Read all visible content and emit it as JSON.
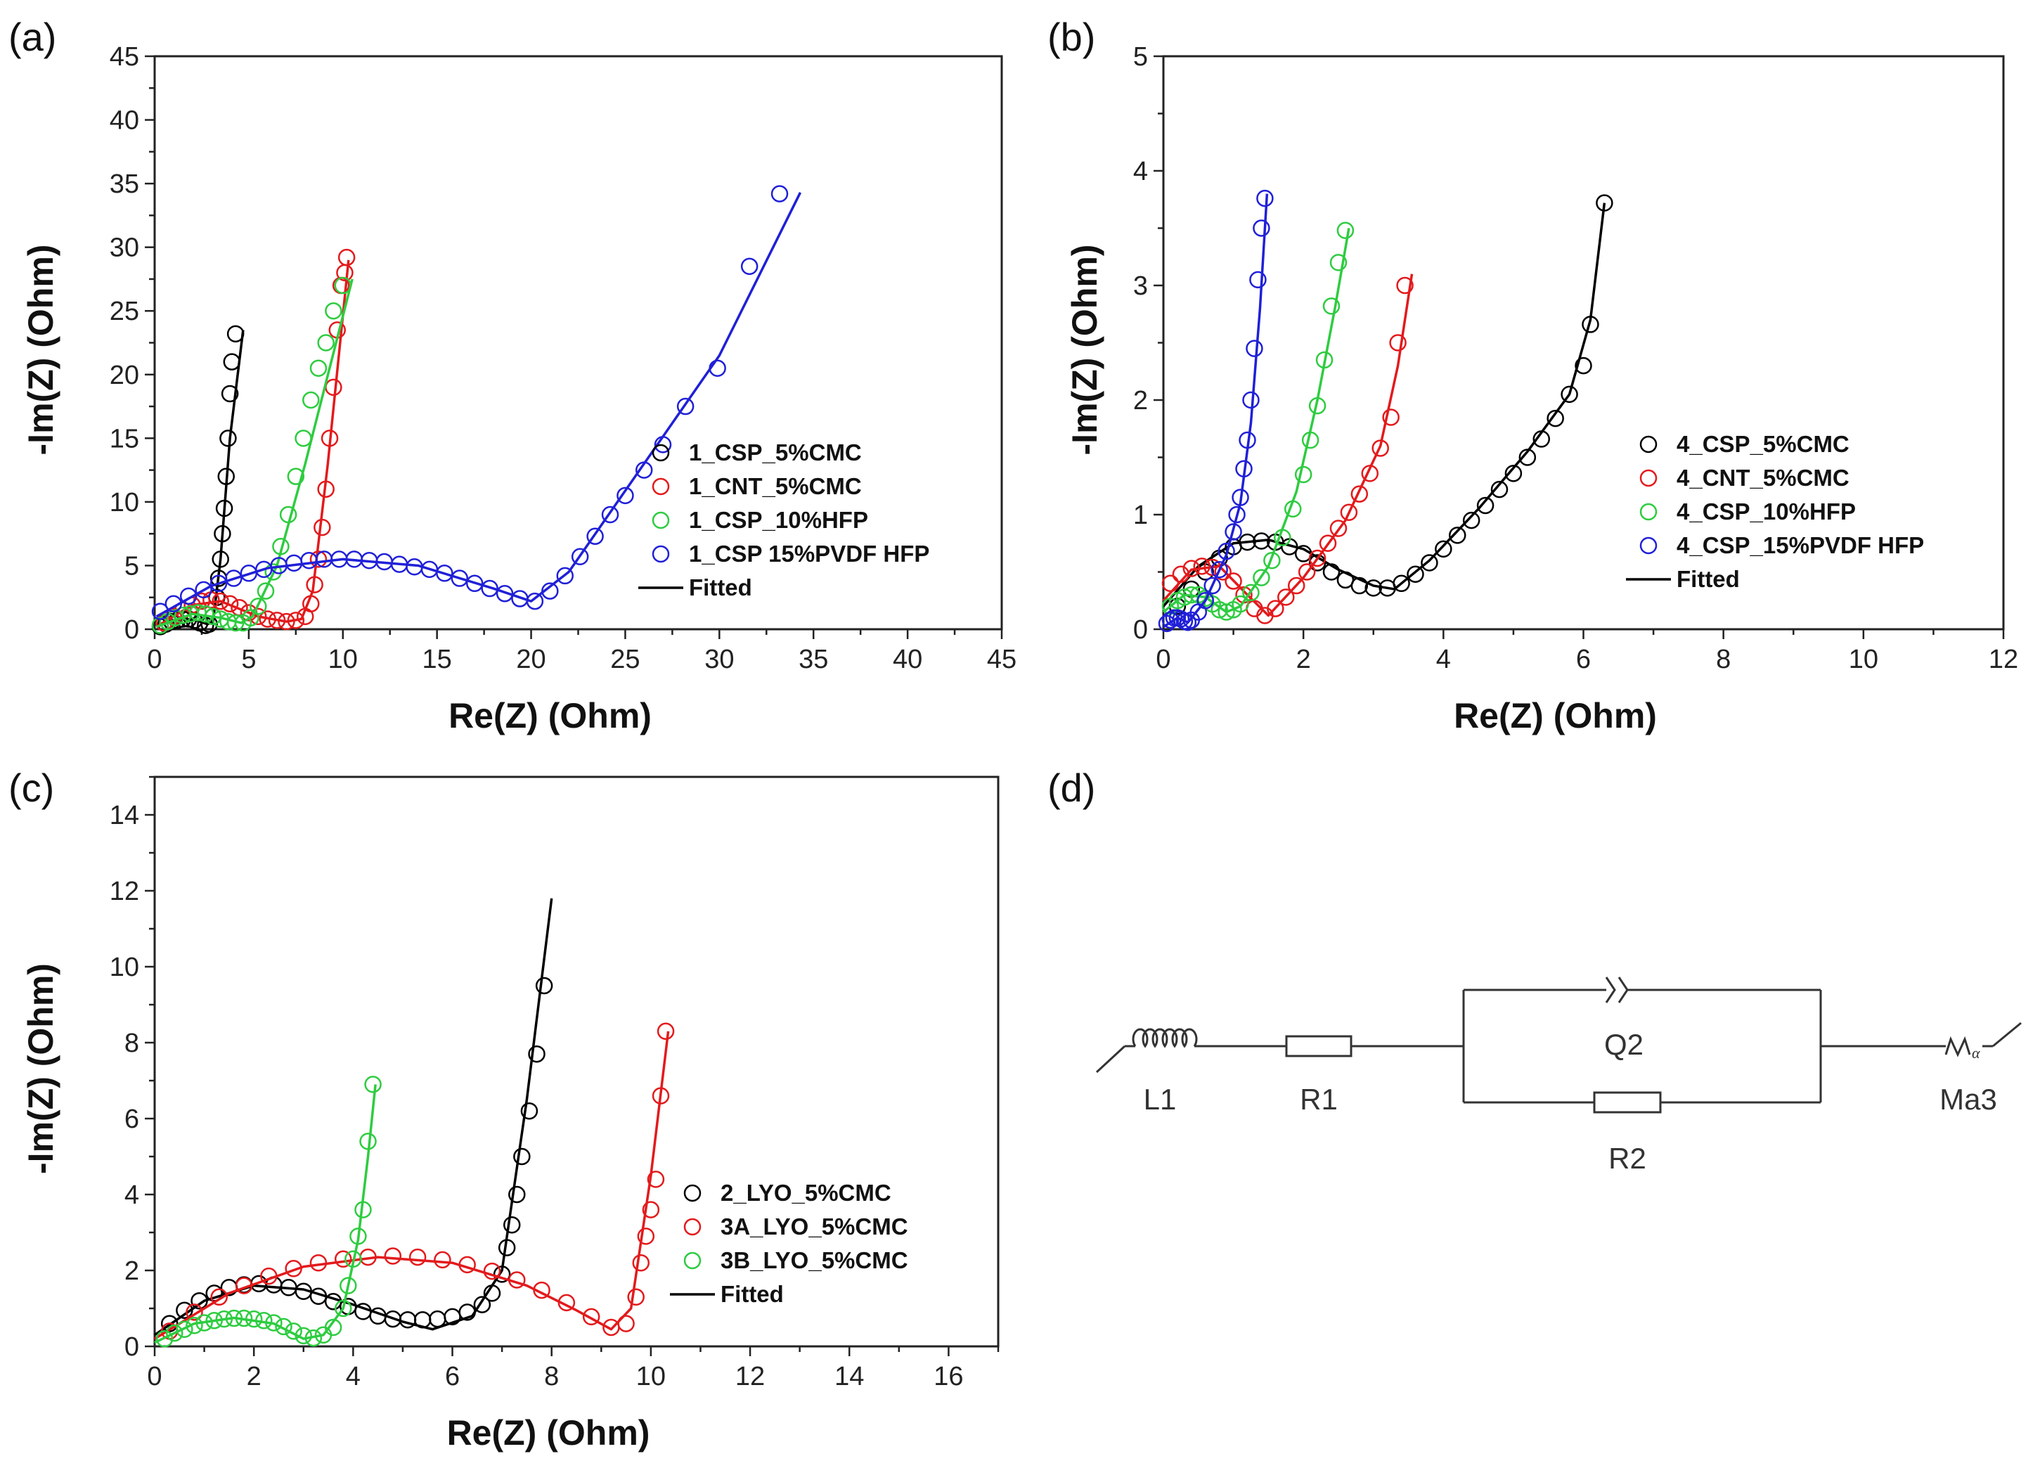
{
  "figure": {
    "panels": [
      "(a)",
      "(b)",
      "(c)",
      "(d)"
    ]
  },
  "chart_data": [
    {
      "type": "scatter",
      "panel": "(a)",
      "xlabel": "Re(Z) (Ohm)",
      "ylabel": "-Im(Z) (Ohm)",
      "xlim": [
        0,
        45
      ],
      "ylim": [
        0,
        45
      ],
      "xticks": [
        0,
        5,
        10,
        15,
        20,
        25,
        30,
        35,
        40,
        45
      ],
      "yticks": [
        0,
        5,
        10,
        15,
        20,
        25,
        30,
        35,
        40,
        45
      ],
      "legend_position": "center-right",
      "fitted_label": "Fitted",
      "series": [
        {
          "name": "1_CSP_5%CMC",
          "color": "#000000",
          "x": [
            0.3,
            0.6,
            0.9,
            1.2,
            1.5,
            1.8,
            2.1,
            2.4,
            2.7,
            2.9,
            3.1,
            3.3,
            3.4,
            3.5,
            3.6,
            3.7,
            3.8,
            3.9,
            4.0,
            4.1,
            4.3
          ],
          "y": [
            0.2,
            0.4,
            0.6,
            0.7,
            0.8,
            0.8,
            0.7,
            0.5,
            0.3,
            0.4,
            1.0,
            2.5,
            4.0,
            5.5,
            7.5,
            9.5,
            12.0,
            15.0,
            18.5,
            21.0,
            23.2
          ],
          "fit_x": [
            0.1,
            1.0,
            2.0,
            2.8,
            3.1,
            3.5,
            4.0,
            4.7
          ],
          "fit_y": [
            0.2,
            0.7,
            0.8,
            0.4,
            0.6,
            5.5,
            15.0,
            23.5
          ]
        },
        {
          "name": "1_CNT_5%CMC",
          "color": "#e31a1c",
          "x": [
            0.5,
            1.0,
            1.5,
            2.0,
            2.5,
            3.0,
            3.5,
            4.0,
            4.5,
            5.0,
            5.5,
            6.0,
            6.5,
            7.0,
            7.5,
            8.0,
            8.3,
            8.5,
            8.7,
            8.9,
            9.1,
            9.3,
            9.5,
            9.7,
            9.9,
            10.1,
            10.2
          ],
          "y": [
            0.5,
            1.0,
            1.5,
            1.9,
            2.2,
            2.3,
            2.2,
            2.0,
            1.7,
            1.3,
            1.0,
            0.8,
            0.7,
            0.6,
            0.7,
            1.0,
            2.0,
            3.5,
            5.5,
            8.0,
            11.0,
            15.0,
            19.0,
            23.5,
            27.0,
            28.0,
            29.2
          ],
          "fit_x": [
            0.2,
            2.0,
            3.5,
            5.5,
            7.0,
            7.8,
            8.4,
            9.2,
            10.3
          ],
          "fit_y": [
            0.3,
            1.9,
            2.2,
            1.0,
            0.6,
            0.8,
            3.0,
            13.0,
            29.0
          ]
        },
        {
          "name": "1_CSP_10%HFP",
          "color": "#2ecc40",
          "x": [
            0.3,
            0.7,
            1.1,
            1.5,
            1.9,
            2.3,
            2.7,
            3.1,
            3.5,
            3.9,
            4.3,
            4.7,
            5.1,
            5.5,
            5.9,
            6.3,
            6.7,
            7.1,
            7.5,
            7.9,
            8.3,
            8.7,
            9.1,
            9.5,
            10.0
          ],
          "y": [
            0.3,
            0.6,
            0.9,
            1.1,
            1.2,
            1.3,
            1.2,
            1.0,
            0.8,
            0.6,
            0.5,
            0.5,
            0.9,
            1.8,
            3.0,
            4.5,
            6.5,
            9.0,
            12.0,
            15.0,
            18.0,
            20.5,
            22.5,
            25.0,
            27.0
          ],
          "fit_x": [
            0.1,
            2.0,
            3.5,
            4.6,
            5.2,
            6.5,
            8.0,
            10.5
          ],
          "fit_y": [
            0.2,
            1.2,
            0.9,
            0.5,
            1.0,
            5.0,
            13.0,
            27.5
          ]
        },
        {
          "name": "1_CSP 15%PVDF HFP",
          "color": "#2020d8",
          "x": [
            0.3,
            1.0,
            1.8,
            2.6,
            3.4,
            4.2,
            5.0,
            5.8,
            6.6,
            7.4,
            8.2,
            9.0,
            9.8,
            10.6,
            11.4,
            12.2,
            13.0,
            13.8,
            14.6,
            15.4,
            16.2,
            17.0,
            17.8,
            18.6,
            19.4,
            20.2,
            21.0,
            21.8,
            22.6,
            23.4,
            24.2,
            25.0,
            26.0,
            27.0,
            28.2,
            29.9,
            31.6,
            33.2
          ],
          "y": [
            1.4,
            2.0,
            2.6,
            3.1,
            3.6,
            4.0,
            4.4,
            4.7,
            5.0,
            5.2,
            5.4,
            5.5,
            5.5,
            5.5,
            5.4,
            5.3,
            5.1,
            4.9,
            4.7,
            4.4,
            4.0,
            3.6,
            3.2,
            2.8,
            2.4,
            2.2,
            3.0,
            4.2,
            5.7,
            7.3,
            9.0,
            10.5,
            12.5,
            14.5,
            17.5,
            20.5,
            28.5,
            34.2
          ],
          "fit_x": [
            0.1,
            3.0,
            6.0,
            10.0,
            14.0,
            18.0,
            20.0,
            22.0,
            26.0,
            30.0,
            34.3
          ],
          "fit_y": [
            1.0,
            3.4,
            4.8,
            5.5,
            5.0,
            3.2,
            2.2,
            4.5,
            13.0,
            21.5,
            34.3
          ]
        }
      ]
    },
    {
      "type": "scatter",
      "panel": "(b)",
      "xlabel": "Re(Z) (Ohm)",
      "ylabel": "-Im(Z) (Ohm)",
      "xlim": [
        0,
        12
      ],
      "ylim": [
        0,
        5
      ],
      "xticks": [
        0,
        2,
        4,
        6,
        8,
        10,
        12
      ],
      "yticks": [
        0,
        1,
        2,
        3,
        4,
        5
      ],
      "legend_position": "center-right",
      "fitted_label": "Fitted",
      "series": [
        {
          "name": "4_CSP_5%CMC",
          "color": "#000000",
          "x": [
            0.2,
            0.4,
            0.6,
            0.8,
            1.0,
            1.2,
            1.4,
            1.6,
            1.8,
            2.0,
            2.2,
            2.4,
            2.6,
            2.8,
            3.0,
            3.2,
            3.4,
            3.6,
            3.8,
            4.0,
            4.2,
            4.4,
            4.6,
            4.8,
            5.0,
            5.2,
            5.4,
            5.6,
            5.8,
            6.0,
            6.1,
            6.3
          ],
          "y": [
            0.2,
            0.35,
            0.5,
            0.62,
            0.72,
            0.76,
            0.77,
            0.76,
            0.72,
            0.66,
            0.58,
            0.5,
            0.43,
            0.38,
            0.36,
            0.36,
            0.4,
            0.48,
            0.58,
            0.7,
            0.82,
            0.95,
            1.08,
            1.22,
            1.36,
            1.5,
            1.66,
            1.84,
            2.05,
            2.3,
            2.66,
            3.72
          ],
          "fit_x": [
            0.0,
            0.5,
            1.0,
            1.5,
            2.0,
            2.5,
            3.0,
            3.3,
            3.8,
            4.5,
            5.2,
            5.8,
            6.1,
            6.3
          ],
          "fit_y": [
            0.2,
            0.55,
            0.75,
            0.78,
            0.7,
            0.52,
            0.38,
            0.35,
            0.6,
            1.05,
            1.55,
            2.05,
            2.7,
            3.72
          ]
        },
        {
          "name": "4_CNT_5%CMC",
          "color": "#e31a1c",
          "x": [
            0.1,
            0.25,
            0.4,
            0.55,
            0.7,
            0.85,
            1.0,
            1.15,
            1.3,
            1.45,
            1.6,
            1.75,
            1.9,
            2.05,
            2.2,
            2.35,
            2.5,
            2.65,
            2.8,
            2.95,
            3.1,
            3.25,
            3.35,
            3.45
          ],
          "y": [
            0.4,
            0.48,
            0.53,
            0.55,
            0.54,
            0.5,
            0.42,
            0.3,
            0.18,
            0.12,
            0.18,
            0.28,
            0.38,
            0.5,
            0.62,
            0.75,
            0.88,
            1.02,
            1.18,
            1.36,
            1.58,
            1.85,
            2.5,
            3.0
          ],
          "fit_x": [
            0.0,
            0.4,
            0.8,
            1.2,
            1.5,
            2.0,
            2.6,
            3.1,
            3.35,
            3.55
          ],
          "fit_y": [
            0.25,
            0.52,
            0.55,
            0.3,
            0.12,
            0.45,
            0.95,
            1.6,
            2.3,
            3.1
          ]
        },
        {
          "name": "4_CSP_10%HFP",
          "color": "#2ecc40",
          "x": [
            0.1,
            0.2,
            0.3,
            0.4,
            0.5,
            0.6,
            0.7,
            0.8,
            0.9,
            1.0,
            1.1,
            1.25,
            1.4,
            1.55,
            1.7,
            1.85,
            2.0,
            2.1,
            2.2,
            2.3,
            2.4,
            2.5,
            2.6
          ],
          "y": [
            0.2,
            0.25,
            0.28,
            0.3,
            0.3,
            0.27,
            0.22,
            0.17,
            0.15,
            0.17,
            0.22,
            0.32,
            0.45,
            0.6,
            0.8,
            1.05,
            1.35,
            1.65,
            1.95,
            2.35,
            2.82,
            3.2,
            3.48
          ],
          "fit_x": [
            0.0,
            0.3,
            0.6,
            0.9,
            1.1,
            1.5,
            1.9,
            2.2,
            2.45,
            2.65
          ],
          "fit_y": [
            0.15,
            0.3,
            0.28,
            0.15,
            0.2,
            0.55,
            1.2,
            2.0,
            2.8,
            3.5
          ]
        },
        {
          "name": "4_CSP_15%PVDF HFP",
          "color": "#2020d8",
          "x": [
            0.05,
            0.1,
            0.15,
            0.2,
            0.25,
            0.3,
            0.35,
            0.4,
            0.5,
            0.6,
            0.7,
            0.8,
            0.9,
            1.0,
            1.05,
            1.1,
            1.15,
            1.2,
            1.25,
            1.3,
            1.35,
            1.4,
            1.45
          ],
          "y": [
            0.05,
            0.08,
            0.1,
            0.1,
            0.09,
            0.07,
            0.06,
            0.08,
            0.15,
            0.25,
            0.38,
            0.52,
            0.68,
            0.85,
            1.0,
            1.15,
            1.4,
            1.65,
            2.0,
            2.45,
            3.05,
            3.5,
            3.76
          ],
          "fit_x": [
            0.0,
            0.2,
            0.35,
            0.6,
            0.9,
            1.1,
            1.25,
            1.38,
            1.48
          ],
          "fit_y": [
            0.02,
            0.1,
            0.06,
            0.25,
            0.65,
            1.1,
            1.8,
            2.8,
            3.8
          ]
        }
      ]
    },
    {
      "type": "scatter",
      "panel": "(c)",
      "xlabel": "Re(Z) (Ohm)",
      "ylabel": "-Im(Z) (Ohm)",
      "xlim": [
        0,
        17
      ],
      "ylim": [
        0,
        15
      ],
      "xticks": [
        0,
        2,
        4,
        6,
        8,
        10,
        12,
        14,
        16
      ],
      "yticks": [
        0,
        2,
        4,
        6,
        8,
        10,
        12,
        14
      ],
      "legend_position": "center-right",
      "fitted_label": "Fitted",
      "series": [
        {
          "name": "2_LYO_5%CMC",
          "color": "#000000",
          "x": [
            0.3,
            0.6,
            0.9,
            1.2,
            1.5,
            1.8,
            2.1,
            2.4,
            2.7,
            3.0,
            3.3,
            3.6,
            3.9,
            4.2,
            4.5,
            4.8,
            5.1,
            5.4,
            5.7,
            6.0,
            6.3,
            6.6,
            6.8,
            7.0,
            7.1,
            7.2,
            7.3,
            7.4,
            7.55,
            7.7,
            7.85
          ],
          "y": [
            0.6,
            0.95,
            1.2,
            1.4,
            1.55,
            1.62,
            1.65,
            1.62,
            1.55,
            1.45,
            1.32,
            1.18,
            1.05,
            0.92,
            0.8,
            0.72,
            0.7,
            0.7,
            0.72,
            0.78,
            0.9,
            1.1,
            1.4,
            1.9,
            2.6,
            3.2,
            4.0,
            5.0,
            6.2,
            7.7,
            9.5
          ],
          "fit_x": [
            0.0,
            1.0,
            2.0,
            3.0,
            4.0,
            5.0,
            5.6,
            6.4,
            7.0,
            7.5,
            8.0
          ],
          "fit_y": [
            0.3,
            1.2,
            1.6,
            1.5,
            1.1,
            0.65,
            0.45,
            0.8,
            2.0,
            6.5,
            11.8
          ]
        },
        {
          "name": "3A_LYO_5%CMC",
          "color": "#e31a1c",
          "x": [
            0.3,
            0.8,
            1.3,
            1.8,
            2.3,
            2.8,
            3.3,
            3.8,
            4.3,
            4.8,
            5.3,
            5.8,
            6.3,
            6.8,
            7.3,
            7.8,
            8.3,
            8.8,
            9.2,
            9.5,
            9.7,
            9.8,
            9.9,
            10.0,
            10.1,
            10.2,
            10.3
          ],
          "y": [
            0.4,
            0.9,
            1.3,
            1.6,
            1.85,
            2.05,
            2.2,
            2.3,
            2.35,
            2.38,
            2.35,
            2.28,
            2.15,
            1.98,
            1.75,
            1.48,
            1.15,
            0.78,
            0.5,
            0.6,
            1.3,
            2.2,
            2.9,
            3.6,
            4.4,
            6.6,
            8.3
          ],
          "fit_x": [
            0.0,
            1.5,
            3.0,
            4.5,
            6.0,
            7.5,
            8.5,
            9.2,
            9.6,
            10.0,
            10.35
          ],
          "fit_y": [
            0.2,
            1.4,
            2.1,
            2.35,
            2.2,
            1.6,
            0.95,
            0.45,
            1.0,
            4.5,
            8.3
          ]
        },
        {
          "name": "3B_LYO_5%CMC",
          "color": "#2ecc40",
          "x": [
            0.2,
            0.4,
            0.6,
            0.8,
            1.0,
            1.2,
            1.4,
            1.6,
            1.8,
            2.0,
            2.2,
            2.4,
            2.6,
            2.8,
            3.0,
            3.2,
            3.4,
            3.6,
            3.8,
            3.9,
            4.0,
            4.1,
            4.2,
            4.3,
            4.4
          ],
          "y": [
            0.2,
            0.35,
            0.45,
            0.55,
            0.62,
            0.68,
            0.72,
            0.74,
            0.74,
            0.72,
            0.68,
            0.62,
            0.52,
            0.4,
            0.28,
            0.22,
            0.3,
            0.5,
            1.0,
            1.6,
            2.3,
            2.9,
            3.6,
            5.4,
            6.9
          ],
          "fit_x": [
            0.0,
            0.8,
            1.6,
            2.4,
            3.0,
            3.4,
            3.8,
            4.1,
            4.3,
            4.45
          ],
          "fit_y": [
            0.1,
            0.6,
            0.75,
            0.6,
            0.2,
            0.3,
            1.0,
            2.8,
            5.0,
            6.9
          ]
        }
      ]
    }
  ],
  "circuit": {
    "panel": "(d)",
    "components": [
      "L1",
      "R1",
      "Q2",
      "R2",
      "Ma3"
    ]
  }
}
